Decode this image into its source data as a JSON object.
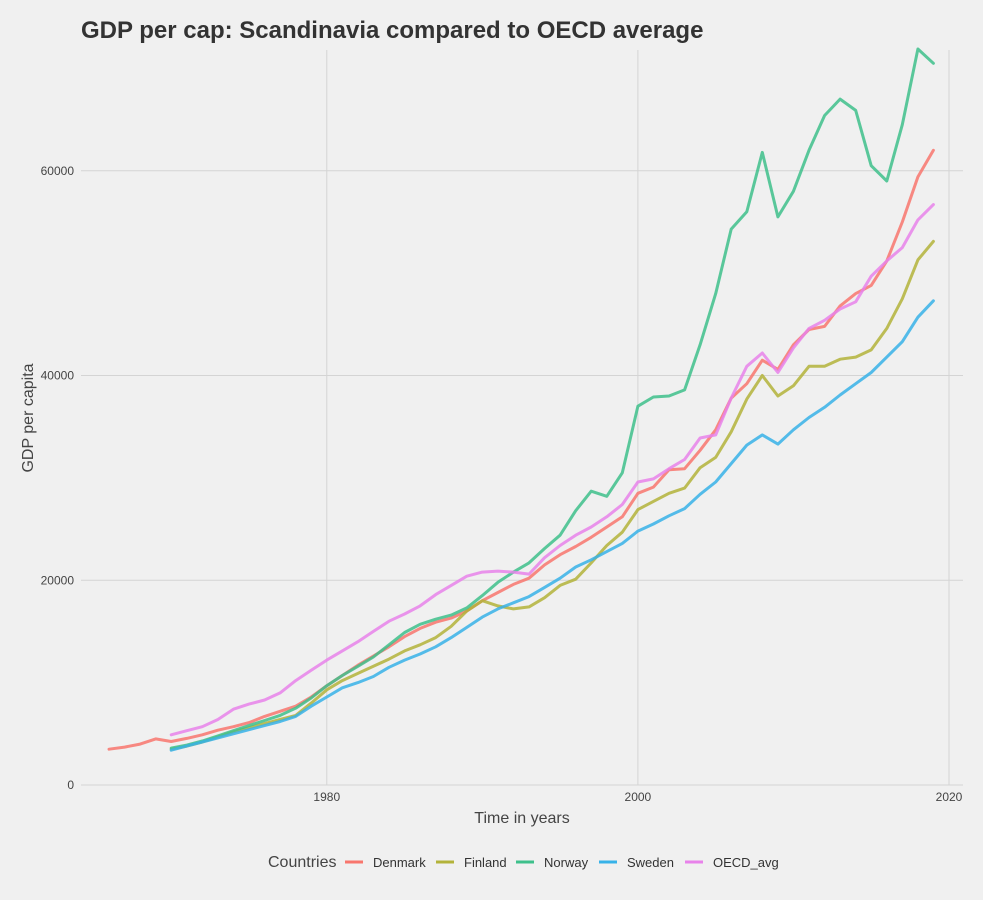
{
  "chart_data": {
    "type": "line",
    "title": "GDP per cap: Scandinavia compared to OECD average",
    "xlabel": "Time in years",
    "ylabel": "GDP per capita",
    "xlim": [
      1964.2,
      2020.9
    ],
    "ylim": [
      0,
      71800
    ],
    "x_ticks": [
      1980,
      2000,
      2020
    ],
    "y_ticks": [
      0,
      20000,
      40000,
      60000
    ],
    "x_tick_labels": [
      "1980",
      "2000",
      "2020"
    ],
    "y_tick_labels": [
      "0",
      "20000",
      "40000",
      "60000"
    ],
    "grid": true,
    "legend": {
      "title": "Countries",
      "position": "bottom"
    },
    "series": [
      {
        "name": "Denmark",
        "color": "#F8766D",
        "x": [
          1966,
          1967,
          1968,
          1969,
          1970,
          1971,
          1972,
          1973,
          1974,
          1975,
          1976,
          1977,
          1978,
          1979,
          1980,
          1981,
          1982,
          1983,
          1984,
          1985,
          1986,
          1987,
          1988,
          1989,
          1990,
          1991,
          1992,
          1993,
          1994,
          1995,
          1996,
          1997,
          1998,
          1999,
          2000,
          2001,
          2002,
          2003,
          2004,
          2005,
          2006,
          2007,
          2008,
          2009,
          2010,
          2011,
          2012,
          2013,
          2014,
          2015,
          2016,
          2017,
          2018,
          2019
        ],
        "y": [
          3500,
          3700,
          4000,
          4500,
          4250,
          4550,
          4900,
          5350,
          5700,
          6100,
          6700,
          7200,
          7700,
          8600,
          9700,
          10700,
          11700,
          12600,
          13500,
          14500,
          15300,
          15900,
          16300,
          17000,
          18000,
          18800,
          19600,
          20200,
          21500,
          22500,
          23300,
          24200,
          25200,
          26200,
          28500,
          29100,
          30800,
          30900,
          32700,
          34700,
          37800,
          39200,
          41500,
          40600,
          43000,
          44500,
          44800,
          46800,
          48000,
          48800,
          51200,
          55000,
          59400,
          62000
        ]
      },
      {
        "name": "Finland",
        "color": "#B3B33A",
        "x": [
          1970,
          1971,
          1972,
          1973,
          1974,
          1975,
          1976,
          1977,
          1978,
          1979,
          1980,
          1981,
          1982,
          1983,
          1984,
          1985,
          1986,
          1987,
          1988,
          1989,
          1990,
          1991,
          1992,
          1993,
          1994,
          1995,
          1996,
          1997,
          1998,
          1999,
          2000,
          2001,
          2002,
          2003,
          2004,
          2005,
          2006,
          2007,
          2008,
          2009,
          2010,
          2011,
          2012,
          2013,
          2014,
          2015,
          2016,
          2017,
          2018,
          2019
        ],
        "y": [
          3500,
          3800,
          4200,
          4700,
          5200,
          5600,
          6000,
          6400,
          6800,
          8000,
          9300,
          10200,
          10900,
          11600,
          12300,
          13100,
          13700,
          14400,
          15500,
          17000,
          18000,
          17500,
          17200,
          17400,
          18300,
          19500,
          20100,
          21700,
          23400,
          24700,
          26900,
          27700,
          28500,
          29000,
          31000,
          32000,
          34500,
          37700,
          40000,
          38000,
          39000,
          40900,
          40900,
          41600,
          41800,
          42500,
          44600,
          47500,
          51300,
          53100
        ]
      },
      {
        "name": "Norway",
        "color": "#3EC08B",
        "x": [
          1970,
          1971,
          1972,
          1973,
          1974,
          1975,
          1976,
          1977,
          1978,
          1979,
          1980,
          1981,
          1982,
          1983,
          1984,
          1985,
          1986,
          1987,
          1988,
          1989,
          1990,
          1991,
          1992,
          1993,
          1994,
          1995,
          1996,
          1997,
          1998,
          1999,
          2000,
          2001,
          2002,
          2003,
          2004,
          2005,
          2006,
          2007,
          2008,
          2009,
          2010,
          2011,
          2012,
          2013,
          2014,
          2015,
          2016,
          2017,
          2018,
          2019
        ],
        "y": [
          3600,
          3900,
          4300,
          4800,
          5300,
          5800,
          6300,
          6800,
          7500,
          8500,
          9700,
          10700,
          11600,
          12500,
          13700,
          14900,
          15700,
          16200,
          16600,
          17300,
          18500,
          19800,
          20800,
          21700,
          23100,
          24400,
          26800,
          28700,
          28200,
          30500,
          37000,
          37900,
          38000,
          38600,
          43000,
          48000,
          54300,
          56000,
          61800,
          55500,
          58000,
          62000,
          65400,
          67000,
          65900,
          60500,
          59000,
          64500,
          71900,
          70500
        ]
      },
      {
        "name": "Sweden",
        "color": "#37B2E8",
        "x": [
          1970,
          1971,
          1972,
          1973,
          1974,
          1975,
          1976,
          1977,
          1978,
          1979,
          1980,
          1981,
          1982,
          1983,
          1984,
          1985,
          1986,
          1987,
          1988,
          1989,
          1990,
          1991,
          1992,
          1993,
          1994,
          1995,
          1996,
          1997,
          1998,
          1999,
          2000,
          2001,
          2002,
          2003,
          2004,
          2005,
          2006,
          2007,
          2008,
          2009,
          2010,
          2011,
          2012,
          2013,
          2014,
          2015,
          2016,
          2017,
          2018,
          2019
        ],
        "y": [
          3400,
          3800,
          4200,
          4600,
          5000,
          5400,
          5800,
          6200,
          6700,
          7700,
          8600,
          9500,
          10000,
          10600,
          11500,
          12200,
          12800,
          13500,
          14400,
          15400,
          16400,
          17200,
          17800,
          18400,
          19300,
          20200,
          21300,
          22000,
          22800,
          23600,
          24800,
          25500,
          26300,
          27000,
          28400,
          29600,
          31400,
          33200,
          34200,
          33300,
          34700,
          35900,
          36900,
          38100,
          39200,
          40300,
          41800,
          43300,
          45700,
          47300
        ]
      },
      {
        "name": "OECD_avg",
        "color": "#E882EA",
        "x": [
          1970,
          1971,
          1972,
          1973,
          1974,
          1975,
          1976,
          1977,
          1978,
          1979,
          1980,
          1981,
          1982,
          1983,
          1984,
          1985,
          1986,
          1987,
          1988,
          1989,
          1990,
          1991,
          1992,
          1993,
          1994,
          1995,
          1996,
          1997,
          1998,
          1999,
          2000,
          2001,
          2002,
          2003,
          2004,
          2005,
          2006,
          2007,
          2008,
          2009,
          2010,
          2011,
          2012,
          2013,
          2014,
          2015,
          2016,
          2017,
          2018,
          2019
        ],
        "y": [
          4900,
          5300,
          5700,
          6400,
          7400,
          7900,
          8300,
          9000,
          10200,
          11200,
          12200,
          13100,
          14000,
          15000,
          16000,
          16700,
          17500,
          18600,
          19500,
          20400,
          20800,
          20900,
          20800,
          20600,
          22200,
          23400,
          24400,
          25200,
          26200,
          27400,
          29600,
          29900,
          30900,
          31800,
          33900,
          34200,
          37800,
          40900,
          42200,
          40300,
          42700,
          44600,
          45400,
          46500,
          47200,
          49700,
          51200,
          52500,
          55200,
          56700
        ]
      }
    ]
  }
}
